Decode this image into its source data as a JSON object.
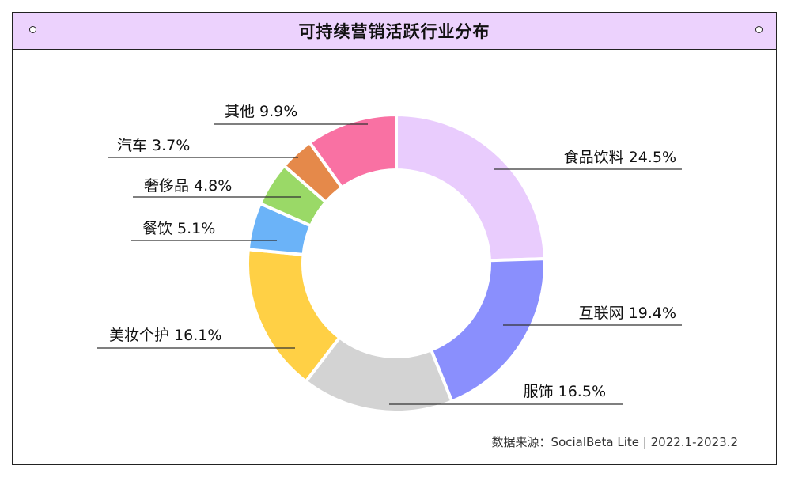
{
  "header": {
    "title": "可持续营销活跃行业分布",
    "source": "数据来源：SocialBeta Lite | 2022.1-2023.2"
  },
  "chart_data": {
    "type": "pie",
    "variant": "donut",
    "title": "可持续营销活跃行业分布",
    "slices": [
      {
        "label": "食品饮料",
        "value": 24.5,
        "display": "24.5%",
        "color": "#e9ccfd"
      },
      {
        "label": "互联网",
        "value": 19.4,
        "display": "19.4%",
        "color": "#8a8ffd"
      },
      {
        "label": "服饰",
        "value": 16.5,
        "display": "16.5%",
        "color": "#d3d3d3"
      },
      {
        "label": "美妆个护",
        "value": 16.1,
        "display": "16.1%",
        "color": "#ffd045"
      },
      {
        "label": "餐饮",
        "value": 5.1,
        "display": "5.1%",
        "color": "#6bb3f8"
      },
      {
        "label": "奢侈品",
        "value": 4.8,
        "display": "4.8%",
        "color": "#9ad967"
      },
      {
        "label": "汽车",
        "value": 3.7,
        "display": "3.7%",
        "color": "#e5894a"
      },
      {
        "label": "其他",
        "value": 9.9,
        "display": "9.9%",
        "color": "#f971a3"
      }
    ],
    "start_angle_deg": 0,
    "direction": "clockwise"
  }
}
